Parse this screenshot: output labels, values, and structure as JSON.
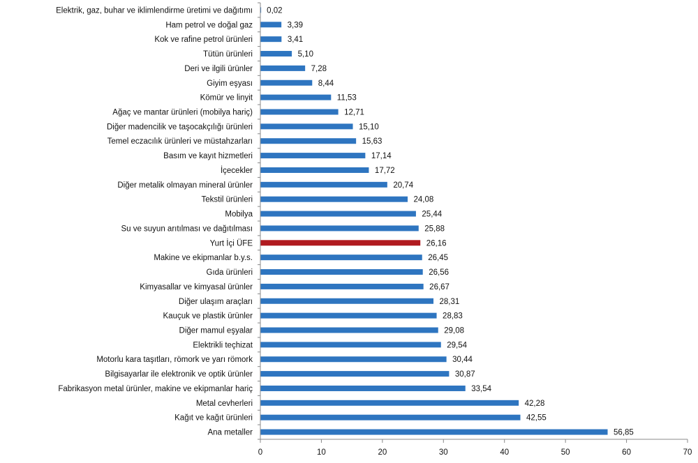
{
  "chart_data": {
    "type": "bar",
    "orientation": "horizontal",
    "categories": [
      "Elektrik, gaz, buhar ve iklimlendirme üretimi ve dağıtımı",
      "Ham petrol ve doğal gaz",
      "Kok ve rafine petrol ürünleri",
      "Tütün ürünleri",
      "Deri ve ilgili ürünler",
      "Giyim eşyası",
      "Kömür ve linyit",
      "Ağaç ve mantar ürünleri (mobilya hariç)",
      "Diğer madencilik ve taşocakçılığı ürünleri",
      "Temel eczacılık ürünleri ve müstahzarları",
      "Basım ve kayıt hizmetleri",
      "İçecekler",
      "Diğer metalik olmayan mineral ürünler",
      "Tekstil ürünleri",
      "Mobilya",
      "Su ve suyun arıtılması ve dağıtılması",
      "Yurt İçi ÜFE",
      "Makine ve ekipmanlar b.y.s.",
      "Gıda ürünleri",
      "Kimyasallar ve kimyasal ürünler",
      "Diğer ulaşım araçları",
      "Kauçuk ve plastik ürünler",
      "Diğer mamul eşyalar",
      "Elektrikli teçhizat",
      "Motorlu kara taşıtları, römork ve yarı römork",
      "Bilgisayarlar ile elektronik ve optik ürünler",
      "Fabrikasyon metal ürünler, makine ve ekipmanlar hariç",
      "Metal cevherleri",
      "Kağıt ve kağıt ürünleri",
      "Ana metaller"
    ],
    "values": [
      0.02,
      3.39,
      3.41,
      5.1,
      7.28,
      8.44,
      11.53,
      12.71,
      15.1,
      15.63,
      17.14,
      17.72,
      20.74,
      24.08,
      25.44,
      25.88,
      26.16,
      26.45,
      26.56,
      26.67,
      28.31,
      28.83,
      29.08,
      29.54,
      30.44,
      30.87,
      33.54,
      42.28,
      42.55,
      56.85
    ],
    "value_labels": [
      "0,02",
      "3,39",
      "3,41",
      "5,10",
      "7,28",
      "8,44",
      "11,53",
      "12,71",
      "15,10",
      "15,63",
      "17,14",
      "17,72",
      "20,74",
      "24,08",
      "25,44",
      "25,88",
      "26,16",
      "26,45",
      "26,56",
      "26,67",
      "28,31",
      "28,83",
      "29,08",
      "29,54",
      "30,44",
      "30,87",
      "33,54",
      "42,28",
      "42,55",
      "56,85"
    ],
    "highlight_category": "Yurt İçi ÜFE",
    "xlim": [
      0,
      70
    ],
    "xticks": [
      0,
      10,
      20,
      30,
      40,
      50,
      60,
      70
    ],
    "title": "",
    "xlabel": "",
    "ylabel": "",
    "grid": false,
    "legend": "none",
    "colors": {
      "bar": "#2e75c0",
      "highlight": "#b01a1f",
      "axis": "#888888"
    }
  }
}
